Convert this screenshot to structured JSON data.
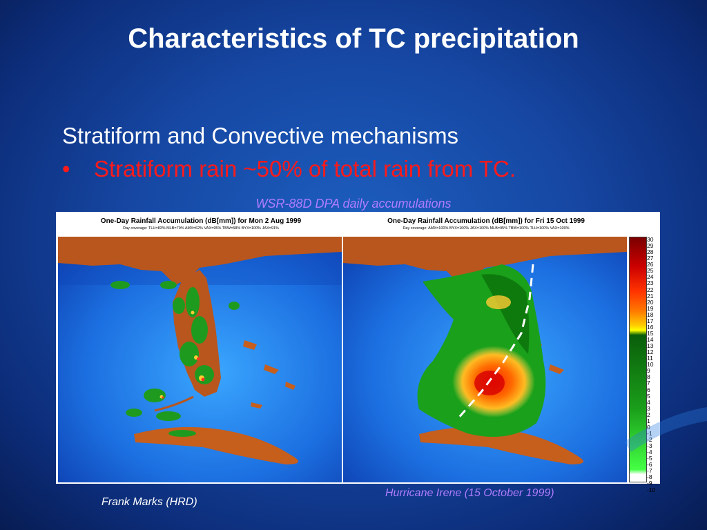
{
  "slide": {
    "title": "Characteristics of TC precipitation",
    "subheading": "Stratiform and Convective mechanisms",
    "bullet_symbol": "•",
    "bullet_text": "Stratiform rain ~50% of total rain from TC.",
    "figure_caption": "WSR-88D DPA daily accumulations",
    "credit": "Frank Marks (HRD)",
    "hurricane_caption": "Hurricane Irene (15 October 1999)"
  },
  "figure": {
    "left_panel": {
      "title": "One-Day Rainfall Accumulation (dB[mm]) for Mon 2 Aug 1999",
      "coverage": "Day coverage: TLH=83% MLB=79% AMX=62% VAX=95% TBW=58% BYX=100% JAX=91%"
    },
    "right_panel": {
      "title": "One-Day Rainfall Accumulation (dB[mm]) for Fri 15 Oct 1999",
      "coverage": "Day coverage: AMX=100% BYX=100% JAX=100% MLB=95% TBW=100% TLH=100% VAX=100%"
    },
    "color_scale": {
      "labels": [
        "30",
        "29",
        "28",
        "27",
        "26",
        "25",
        "24",
        "23",
        "22",
        "21",
        "20",
        "19",
        "18",
        "17",
        "16",
        "15",
        "14",
        "13",
        "12",
        "11",
        "10",
        "9",
        "8",
        "7",
        "6",
        "5",
        "4",
        "3",
        "2",
        "1",
        "0",
        "-1",
        "-2",
        "-3",
        "-4",
        "-5",
        "-6",
        "-7",
        "-8",
        "-9",
        "-10"
      ],
      "colors": {
        "top": "#8b0000",
        "mid_high": "#ff3300",
        "orange": "#ff9900",
        "yellow": "#ffff00",
        "green_dark": "#0b6b0b",
        "green_light": "#33ff33",
        "bottom": "#ffffff"
      }
    }
  }
}
